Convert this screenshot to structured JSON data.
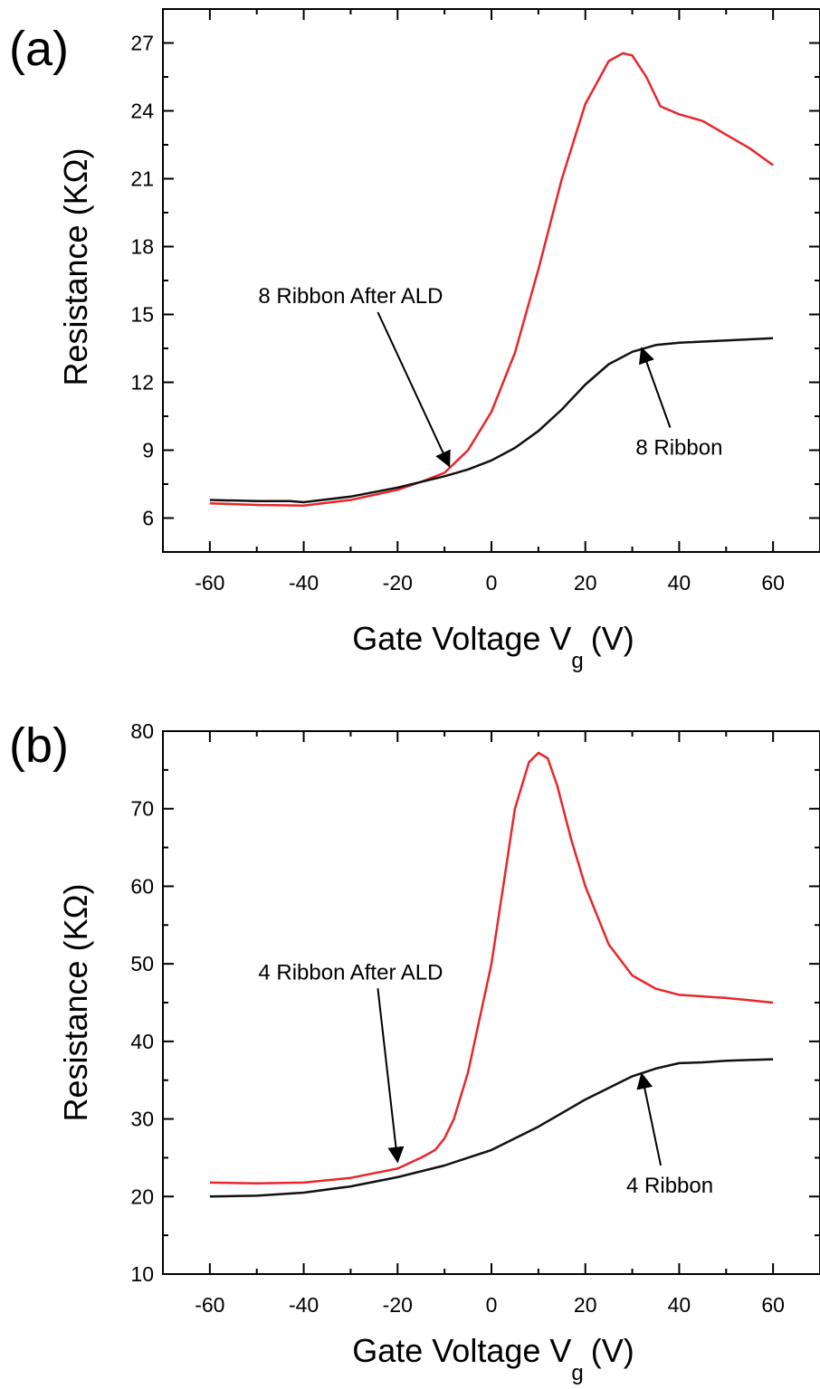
{
  "chart_data": [
    {
      "type": "line",
      "panel_label": "(a)",
      "xlabel": "Gate Voltage V",
      "xlabel_sub": "g",
      "xlabel_unit": "(V)",
      "ylabel": "Resistance (KΩ)",
      "xlim": [
        -70,
        70
      ],
      "ylim": [
        4.5,
        28.5
      ],
      "xticks": [
        -60,
        -40,
        -20,
        0,
        20,
        40,
        60
      ],
      "yticks": [
        6,
        9,
        12,
        15,
        18,
        21,
        24,
        27
      ],
      "grid": false,
      "series": [
        {
          "name": "8 Ribbon After ALD",
          "color": "#e8262b",
          "x": [
            -60,
            -50,
            -40,
            -30,
            -20,
            -15,
            -10,
            -5,
            0,
            5,
            10,
            15,
            20,
            25,
            28,
            30,
            33,
            36,
            40,
            45,
            50,
            55,
            60
          ],
          "y": [
            6.65,
            6.58,
            6.55,
            6.8,
            7.25,
            7.6,
            8.0,
            9.0,
            10.7,
            13.3,
            17.0,
            21.0,
            24.3,
            26.2,
            26.55,
            26.45,
            25.5,
            24.2,
            23.85,
            23.55,
            22.95,
            22.35,
            21.6
          ]
        },
        {
          "name": "8 Ribbon",
          "color": "#111111",
          "x": [
            -60,
            -50,
            -43,
            -40,
            -30,
            -20,
            -10,
            -5,
            0,
            5,
            10,
            15,
            20,
            25,
            30,
            35,
            40,
            45,
            50,
            55,
            60
          ],
          "y": [
            6.8,
            6.75,
            6.75,
            6.7,
            6.95,
            7.35,
            7.85,
            8.15,
            8.55,
            9.1,
            9.85,
            10.8,
            11.9,
            12.8,
            13.35,
            13.65,
            13.75,
            13.8,
            13.85,
            13.9,
            13.95
          ]
        }
      ],
      "annotations": [
        {
          "text": "8 Ribbon After ALD",
          "x": -30,
          "y": 15.5,
          "arrow_to": [
            -9,
            8.3
          ]
        },
        {
          "text": "8 Ribbon",
          "x": 40,
          "y": 8.8,
          "arrow_to": [
            32,
            13.5
          ]
        }
      ]
    },
    {
      "type": "line",
      "panel_label": "(b)",
      "xlabel": "Gate Voltage V",
      "xlabel_sub": "g",
      "xlabel_unit": "(V)",
      "ylabel": "Resistance (KΩ)",
      "xlim": [
        -70,
        70
      ],
      "ylim": [
        10,
        80
      ],
      "xticks": [
        -60,
        -40,
        -20,
        0,
        20,
        40,
        60
      ],
      "yticks": [
        10,
        20,
        30,
        40,
        50,
        60,
        70,
        80
      ],
      "grid": false,
      "series": [
        {
          "name": "4 Ribbon After ALD",
          "color": "#e8262b",
          "x": [
            -60,
            -50,
            -40,
            -30,
            -20,
            -15,
            -12,
            -10,
            -8,
            -5,
            0,
            3,
            5,
            8,
            10,
            12,
            14,
            17,
            20,
            25,
            30,
            35,
            40,
            45,
            50,
            55,
            60
          ],
          "y": [
            21.8,
            21.7,
            21.8,
            22.4,
            23.6,
            25.0,
            26.0,
            27.5,
            30.0,
            36.0,
            50.0,
            62.0,
            70.0,
            76.0,
            77.2,
            76.5,
            73.0,
            66.0,
            60.0,
            52.5,
            48.5,
            46.8,
            46.0,
            45.8,
            45.6,
            45.3,
            45.0
          ]
        },
        {
          "name": "4 Ribbon",
          "color": "#111111",
          "x": [
            -60,
            -50,
            -40,
            -30,
            -20,
            -10,
            0,
            10,
            20,
            30,
            35,
            40,
            45,
            50,
            55,
            60
          ],
          "y": [
            20.0,
            20.1,
            20.5,
            21.3,
            22.5,
            24.0,
            26.0,
            29.0,
            32.5,
            35.5,
            36.5,
            37.2,
            37.3,
            37.5,
            37.6,
            37.7
          ]
        }
      ],
      "annotations": [
        {
          "text": "4 Ribbon After ALD",
          "x": -30,
          "y": 48,
          "arrow_to": [
            -20,
            24.5
          ]
        },
        {
          "text": "4 Ribbon",
          "x": 38,
          "y": 20.5,
          "arrow_to": [
            32,
            35.8
          ]
        }
      ]
    }
  ]
}
